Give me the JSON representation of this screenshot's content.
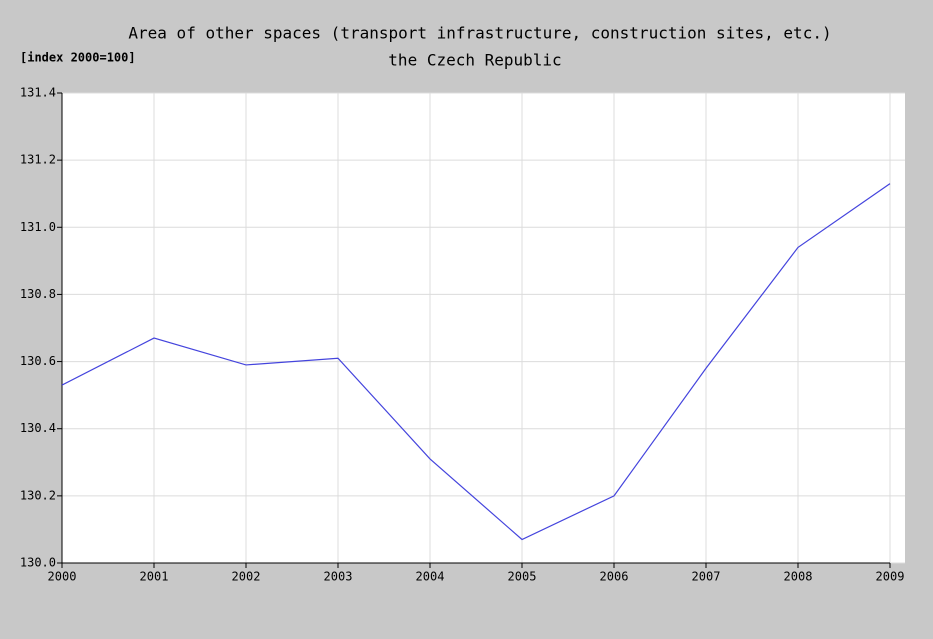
{
  "chart_data": {
    "type": "line",
    "title": "Area of other spaces (transport infrastructure, construction sites, etc.)",
    "subtitle": "the Czech Republic",
    "y_label": "[index 2000=100]",
    "x": [
      2000,
      2001,
      2002,
      2003,
      2004,
      2005,
      2006,
      2007,
      2008,
      2009
    ],
    "series": [
      {
        "name": "the Czech Republic",
        "color": "#4444dd",
        "values": [
          130.53,
          130.67,
          130.59,
          130.61,
          130.31,
          130.07,
          130.2,
          130.58,
          130.94,
          131.13
        ]
      }
    ],
    "xlim": [
      2000,
      2009
    ],
    "xticks": [
      2000,
      2001,
      2002,
      2003,
      2004,
      2005,
      2006,
      2007,
      2008,
      2009
    ],
    "ylim": [
      130,
      131.4
    ],
    "yticks": [
      {
        "value": 130,
        "label": "130.0"
      },
      130.2,
      130.4,
      130.6,
      130.8,
      {
        "value": 131,
        "label": "131.0"
      },
      131.2,
      131.4
    ],
    "grid": true
  }
}
